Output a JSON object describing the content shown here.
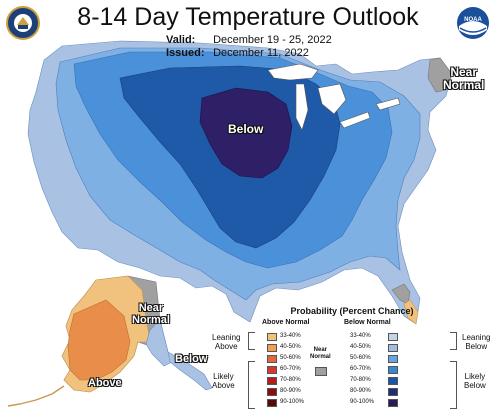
{
  "header": {
    "title": "8-14 Day Temperature Outlook",
    "valid_label": "Valid:",
    "valid_value": "December 19 - 25, 2022",
    "issued_label": "Issued:",
    "issued_value": "December 11, 2022"
  },
  "logos": {
    "left_icon": "doc-seal-icon",
    "right_icon": "noaa-logo-icon",
    "right_text": "NOAA"
  },
  "map_labels": {
    "below_center": "Below",
    "near_normal_northeast": [
      "Near",
      "Normal"
    ],
    "near_normal_alaska": [
      "Near",
      "Normal"
    ],
    "above_alaska": "Above",
    "below_alaska": "Below"
  },
  "legend": {
    "title": "Probability (Percent Chance)",
    "above_header": "Above Normal",
    "below_header": "Below Normal",
    "near_normal_label": [
      "Near",
      "Normal"
    ],
    "leaning_above": [
      "Leaning",
      "Above"
    ],
    "likely_above": [
      "Likely",
      "Above"
    ],
    "leaning_below": [
      "Leaning",
      "Below"
    ],
    "likely_below": [
      "Likely",
      "Below"
    ],
    "above_rows": [
      {
        "label": "33-40%",
        "color": "#f1c27d"
      },
      {
        "label": "40-50%",
        "color": "#f0a050"
      },
      {
        "label": "50-60%",
        "color": "#e5683c"
      },
      {
        "label": "60-70%",
        "color": "#d43a2a"
      },
      {
        "label": "70-80%",
        "color": "#b01e1e"
      },
      {
        "label": "80-90%",
        "color": "#8a1010"
      },
      {
        "label": "90-100%",
        "color": "#5a0808"
      }
    ],
    "below_rows": [
      {
        "label": "33-40%",
        "color": "#c6d4ea"
      },
      {
        "label": "40-50%",
        "color": "#a3bde2"
      },
      {
        "label": "50-60%",
        "color": "#6aa4de"
      },
      {
        "label": "60-70%",
        "color": "#3d86d2"
      },
      {
        "label": "70-80%",
        "color": "#1c55a8"
      },
      {
        "label": "80-90%",
        "color": "#1f2b78"
      },
      {
        "label": "90-100%",
        "color": "#2a1a5a"
      }
    ],
    "near_normal_color": "#a0a0a0"
  },
  "colors": {
    "leaning_below": "#a9c2e4",
    "below_40_50": "#7fb0e3",
    "below_50_60": "#4a91d9",
    "below_60_70": "#1f5aa8",
    "below_70_80": "#2e1f66",
    "near_normal": "#a0a0a0",
    "above_33_40": "#f1c27d",
    "above_40_50": "#e98d4a",
    "water": "#ffffff"
  }
}
